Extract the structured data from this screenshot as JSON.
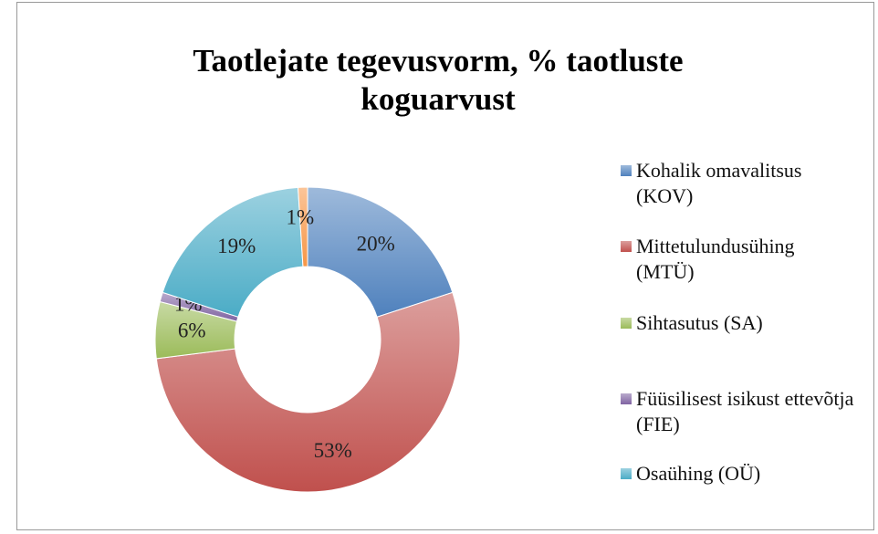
{
  "chart_data": {
    "type": "donut",
    "title": "Taotlejate tegevusvorm, % taotluste koguarvust",
    "categories": [
      "Kohalik omavalitsus (KOV)",
      "Mittetulundusühing (MTÜ)",
      "Sihtasutus (SA)",
      "Füüsilisest isikust ettevõtja (FIE)",
      "Osaühing (OÜ)",
      null
    ],
    "values": [
      20,
      53,
      6,
      1,
      19,
      1
    ],
    "value_labels": [
      "20%",
      "53%",
      "6%",
      "1%",
      "19%",
      "1%"
    ],
    "colors": [
      "#4f81bd",
      "#c0504d",
      "#9bbb59",
      "#8064a2",
      "#4bacc6",
      "#f79646"
    ],
    "legend": "right"
  }
}
